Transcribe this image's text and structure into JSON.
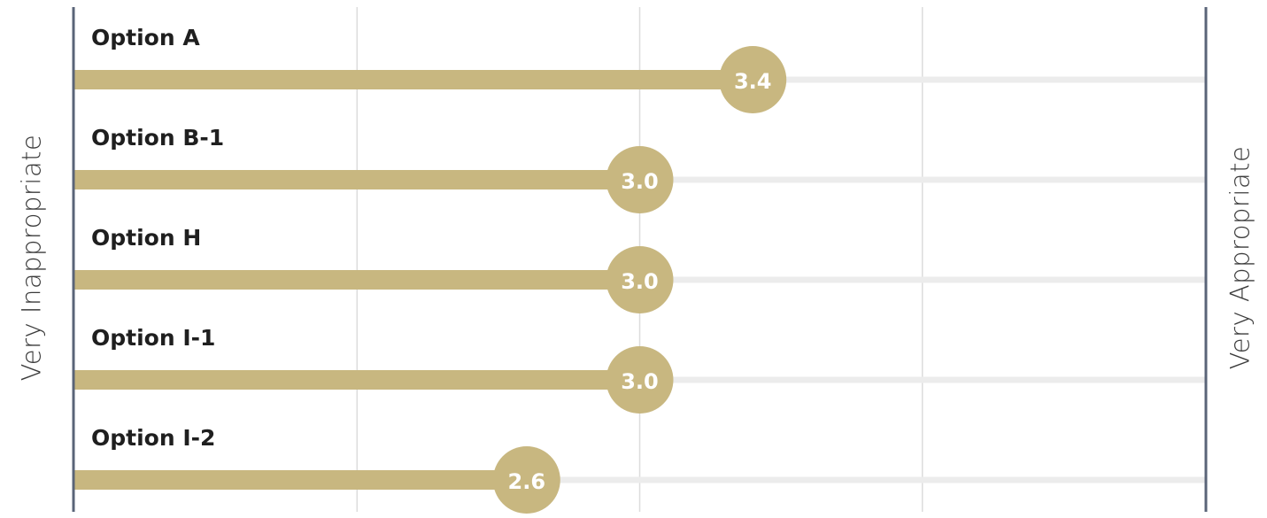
{
  "labels": {
    "left": "Very Inappropriate",
    "right": "Very Appropriate"
  },
  "colors": {
    "bar": "#c8b780",
    "track": "#ececec",
    "gridline": "#dcdcdc",
    "axis": "#5a6478",
    "category_text": "#1f1f1f",
    "value_text": "#ffffff"
  },
  "chart_data": {
    "type": "bar",
    "orientation": "horizontal",
    "categories": [
      "Option A",
      "Option B-1",
      "Option H",
      "Option I-1",
      "Option I-2"
    ],
    "values": [
      3.4,
      3.0,
      3.0,
      3.0,
      2.6
    ],
    "value_labels": [
      "3.4",
      "3.0",
      "3.0",
      "3.0",
      "2.6"
    ],
    "xlim": [
      1,
      5
    ],
    "grid": true,
    "title": "",
    "xlabel": "",
    "ylabel": ""
  }
}
